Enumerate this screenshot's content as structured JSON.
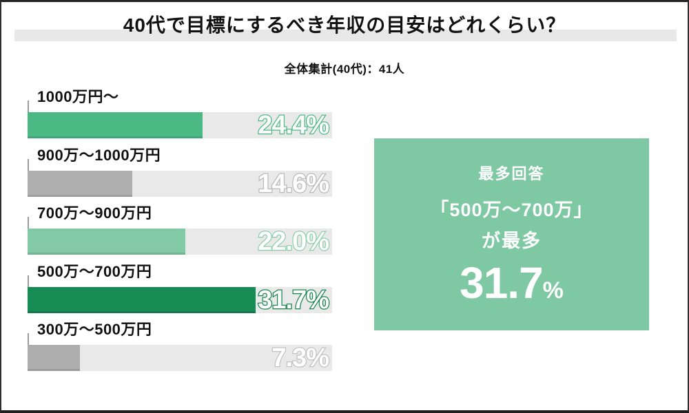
{
  "header": {
    "title": "40代で目標にするべき年収の目安はどれくらい？",
    "subtitle": "全体集計(40代)：41人"
  },
  "chart_data": {
    "type": "bar",
    "orientation": "horizontal",
    "title": "40代で目標にするべき年収の目安はどれくらい？",
    "sample_note": "全体集計(40代)：41人",
    "categories": [
      "1000万円〜",
      "900万〜1000万円",
      "700万〜900万円",
      "500万〜700万円",
      "300万〜500万円"
    ],
    "values": [
      24.4,
      14.6,
      22.0,
      31.7,
      7.3
    ],
    "value_labels": [
      "24.4%",
      "14.6%",
      "22.0%",
      "31.7%",
      "7.3%"
    ],
    "unit": "%",
    "xlim": [
      0,
      42.4
    ],
    "grid": false,
    "legend": false,
    "bar_colors": [
      "#4CB985",
      "#AFAFAF",
      "#82C9A6",
      "#178B54",
      "#ADADAD"
    ],
    "label_outline_colors": [
      "#4CB985",
      "#B9B9B9",
      "#8CCFAB",
      "#17854F",
      "#C1C1C1"
    ],
    "track_color": "#E9E9E9"
  },
  "panel": {
    "line1": "最多回答",
    "line2": "「500万〜700万」",
    "line3": "が最多",
    "big_value": "31.7",
    "big_unit": "%",
    "bg_color": "#7FC8A4"
  },
  "colors": {
    "highlight_band": "#E8E8E8",
    "page_background": "#FFFFFF",
    "border": "#262626",
    "text": "#111111"
  }
}
